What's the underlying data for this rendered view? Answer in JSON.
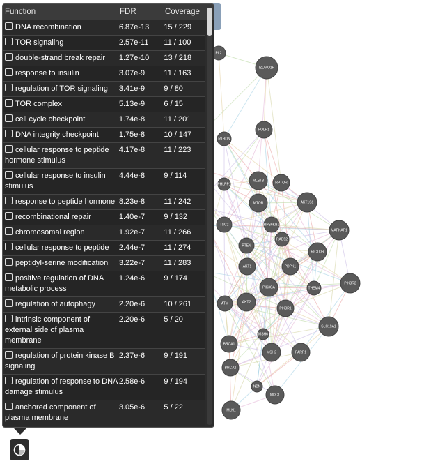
{
  "panel": {
    "headers": {
      "function": "Function",
      "fdr": "FDR",
      "coverage": "Coverage"
    },
    "rows": [
      {
        "function": "DNA recombination",
        "fdr": "6.87e-13",
        "coverage": "15 / 229"
      },
      {
        "function": "TOR signaling",
        "fdr": "2.57e-11",
        "coverage": "11 / 100"
      },
      {
        "function": "double-strand break repair",
        "fdr": "1.27e-10",
        "coverage": "13 / 218"
      },
      {
        "function": "response to insulin",
        "fdr": "3.07e-9",
        "coverage": "11 / 163"
      },
      {
        "function": "regulation of TOR signaling",
        "fdr": "3.41e-9",
        "coverage": "9 / 80"
      },
      {
        "function": "TOR complex",
        "fdr": "5.13e-9",
        "coverage": "6 / 15"
      },
      {
        "function": "cell cycle checkpoint",
        "fdr": "1.74e-8",
        "coverage": "11 / 201"
      },
      {
        "function": "DNA integrity checkpoint",
        "fdr": "1.75e-8",
        "coverage": "10 / 147"
      },
      {
        "function": "cellular response to peptide hormone stimulus",
        "fdr": "4.17e-8",
        "coverage": "11 / 223"
      },
      {
        "function": "cellular response to insulin stimulus",
        "fdr": "4.44e-8",
        "coverage": "9 / 114"
      },
      {
        "function": "response to peptide hormone",
        "fdr": "8.23e-8",
        "coverage": "11 / 242"
      },
      {
        "function": "recombinational repair",
        "fdr": "1.40e-7",
        "coverage": "9 / 132"
      },
      {
        "function": "chromosomal region",
        "fdr": "1.92e-7",
        "coverage": "11 / 266"
      },
      {
        "function": "cellular response to peptide",
        "fdr": "2.44e-7",
        "coverage": "11 / 274"
      },
      {
        "function": "peptidyl-serine modification",
        "fdr": "3.22e-7",
        "coverage": "11 / 283"
      },
      {
        "function": "positive regulation of DNA metabolic process",
        "fdr": "1.24e-6",
        "coverage": "9 / 174"
      },
      {
        "function": "regulation of autophagy",
        "fdr": "2.20e-6",
        "coverage": "10 / 261"
      },
      {
        "function": "intrinsic component of external side of plasma membrane",
        "fdr": "2.20e-6",
        "coverage": "5 / 20"
      },
      {
        "function": "regulation of protein kinase B signaling",
        "fdr": "2.37e-6",
        "coverage": "9 / 191"
      },
      {
        "function": "regulation of response to DNA damage stimulus",
        "fdr": "2.58e-6",
        "coverage": "9 / 194"
      },
      {
        "function": "anchored component of plasma membrane",
        "fdr": "3.05e-6",
        "coverage": "5 / 22"
      }
    ]
  },
  "network": {
    "nodes": [
      {
        "label": "PL2"
      },
      {
        "label": "IZUMO1R"
      },
      {
        "label": "FOLR1"
      },
      {
        "label": "RTBDN"
      },
      {
        "label": "MLST8"
      },
      {
        "label": "RPTOR"
      },
      {
        "label": "PHLPP1"
      },
      {
        "label": "AKT1S1"
      },
      {
        "label": "MTOR"
      },
      {
        "label": "RPS6KB1"
      },
      {
        "label": "TSC2"
      },
      {
        "label": "MAPKAP1"
      },
      {
        "label": "RAD52"
      },
      {
        "label": "PTEN"
      },
      {
        "label": "RICTOR"
      },
      {
        "label": "AKT1"
      },
      {
        "label": "PDPK1"
      },
      {
        "label": "PIK3CA"
      },
      {
        "label": "THEM4"
      },
      {
        "label": "PIK3R2"
      },
      {
        "label": "ATM"
      },
      {
        "label": "AKT2"
      },
      {
        "label": "PIK3R1"
      },
      {
        "label": "SLC19A1"
      },
      {
        "label": "MSH6"
      },
      {
        "label": "BRCA1"
      },
      {
        "label": "MSH2"
      },
      {
        "label": "PARP1"
      },
      {
        "label": "BRCA2"
      },
      {
        "label": "NBN"
      },
      {
        "label": "MDC1"
      },
      {
        "label": "MLH1"
      }
    ]
  }
}
